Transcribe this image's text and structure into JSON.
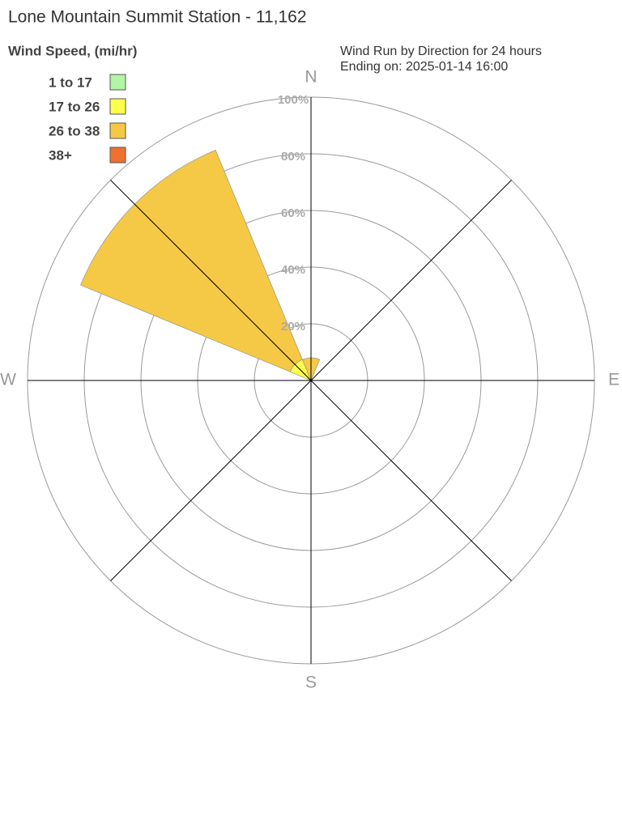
{
  "chart_data": {
    "type": "windrose",
    "title": "Lone Mountain Summit Station - 11,162",
    "legend_title": "Wind Speed, (mi/hr)",
    "subtitle": [
      "Wind Run by Direction for 24 hours",
      "Ending on: 2025-01-14 16:00"
    ],
    "categories": [
      "N",
      null,
      "E",
      null,
      "S",
      null,
      "W",
      null
    ],
    "series": [
      {
        "name": "1 to 17",
        "color": "#b3f5a3",
        "values": [
          0,
          0,
          0,
          0,
          0,
          0,
          0,
          0
        ]
      },
      {
        "name": "17 to 26",
        "color": "#ffff4d",
        "values": [
          0,
          0,
          0,
          0,
          0,
          0,
          0,
          8
        ]
      },
      {
        "name": "26 to 38",
        "color": "#f5c945",
        "values": [
          8,
          0,
          0,
          0,
          0,
          0,
          0,
          80
        ]
      },
      {
        "name": "38+",
        "color": "#f07030",
        "values": [
          0,
          0,
          0,
          0,
          0,
          0,
          0,
          0
        ]
      }
    ],
    "rlim": [
      0,
      100
    ],
    "rticks": [
      {
        "value": 20,
        "label": "20%"
      },
      {
        "value": 40,
        "label": "40%"
      },
      {
        "value": 60,
        "label": "60%"
      },
      {
        "value": 80,
        "label": "80%"
      },
      {
        "value": 100,
        "label": "100%"
      }
    ],
    "grid": true
  }
}
